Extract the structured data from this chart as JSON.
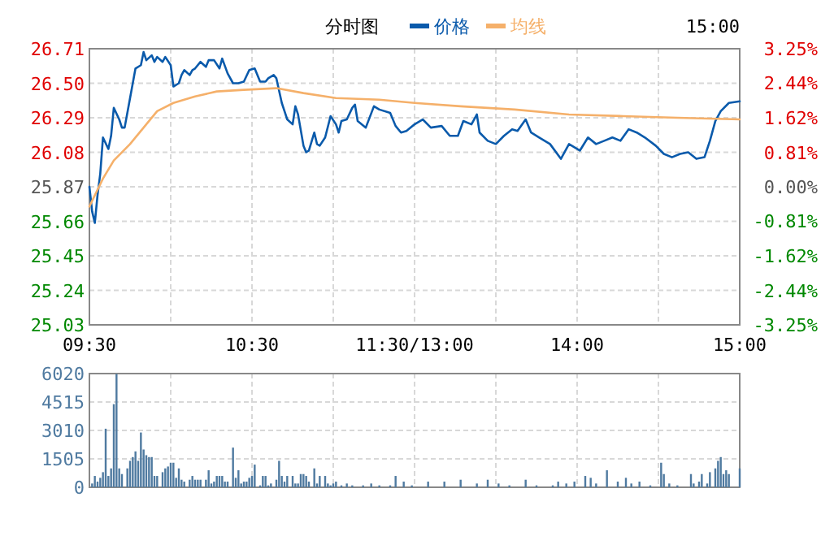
{
  "chart_data": [
    {
      "type": "line",
      "title": "分时图",
      "legend": "top",
      "grid": true,
      "annotations": [
        "15:00"
      ],
      "categories": [
        "09:30",
        null,
        null,
        null,
        null,
        null,
        null,
        null,
        null,
        null,
        null,
        null,
        null,
        null,
        null,
        null,
        null,
        null,
        null,
        null,
        null,
        null,
        null,
        null,
        null,
        null,
        null,
        null,
        null,
        null,
        null,
        null,
        null,
        null,
        null,
        null,
        null,
        null,
        null,
        null,
        null,
        null,
        null,
        null,
        null,
        null,
        null,
        null,
        null,
        null,
        null,
        null,
        null,
        null,
        null,
        null,
        null,
        null,
        null,
        null,
        "10:30",
        null,
        null,
        null,
        null,
        null,
        null,
        null,
        null,
        null,
        null,
        null,
        null,
        null,
        null,
        null,
        null,
        null,
        null,
        null,
        null,
        null,
        null,
        null,
        null,
        null,
        null,
        null,
        null,
        null,
        null,
        null,
        null,
        null,
        null,
        null,
        null,
        null,
        null,
        null,
        null,
        null,
        null,
        null,
        null,
        null,
        null,
        null,
        null,
        null,
        null,
        null,
        null,
        null,
        null,
        null,
        null,
        null,
        null,
        null,
        "11:30/13:00",
        null,
        null,
        null,
        null,
        null,
        null,
        null,
        null,
        null,
        null,
        null,
        null,
        null,
        null,
        null,
        null,
        null,
        null,
        null,
        null,
        null,
        null,
        null,
        null,
        null,
        null,
        null,
        null,
        null,
        null,
        null,
        null,
        null,
        null,
        null,
        null,
        null,
        null,
        null,
        null,
        null,
        null,
        null,
        null,
        null,
        null,
        null,
        null,
        null,
        null,
        null,
        null,
        null,
        null,
        null,
        null,
        null,
        null,
        null,
        "14:00",
        null,
        null,
        null,
        null,
        null,
        null,
        null,
        null,
        null,
        null,
        null,
        null,
        null,
        null,
        null,
        null,
        null,
        null,
        null,
        null,
        null,
        null,
        null,
        null,
        null,
        null,
        null,
        null,
        null,
        null,
        null,
        null,
        null,
        null,
        null,
        null,
        null,
        null,
        null,
        null,
        null,
        null,
        null,
        null,
        null,
        null,
        null,
        null,
        null,
        null,
        null,
        null,
        null,
        null,
        null,
        null,
        null,
        null,
        null,
        "15:00"
      ],
      "ylim": [
        25.03,
        26.71
      ],
      "yticks": [
        {
          "value": 25.03,
          "label": "25.03"
        },
        {
          "value": 25.24,
          "label": "25.24"
        },
        {
          "value": 25.45,
          "label": "25.45"
        },
        {
          "value": 25.66,
          "label": "25.66"
        },
        {
          "value": 25.87,
          "label": "25.87"
        },
        {
          "value": 26.08,
          "label": "26.08"
        },
        {
          "value": 26.29,
          "label": "26.29"
        },
        {
          "value": 26.5,
          "label": "26.50"
        },
        {
          "value": 26.71,
          "label": "26.71"
        }
      ],
      "y2lim": [
        -3.25,
        3.25
      ],
      "y2ticks": [
        {
          "value": -3.25,
          "label": "-3.25%"
        },
        {
          "value": -2.44,
          "label": "-2.44%"
        },
        {
          "value": -1.62,
          "label": "-1.62%"
        },
        {
          "value": -0.81,
          "label": "-0.81%"
        },
        {
          "value": 0,
          "label": "0.00%"
        },
        {
          "value": 0.81,
          "label": "0.81%"
        },
        {
          "value": 1.62,
          "label": "1.62%"
        },
        {
          "value": 2.44,
          "label": "2.44%"
        },
        {
          "value": 3.25,
          "label": "3.25%"
        }
      ],
      "series": [
        {
          "name": "价格",
          "color": "#0a5aab",
          "values": [
            25.87,
            25.72,
            25.65,
            25.82,
            25.95,
            26.17,
            null,
            26.1,
            26.18,
            26.35,
            null,
            26.28,
            26.23,
            26.23,
            null,
            26.41,
            26.5,
            26.59,
            null,
            26.61,
            26.69,
            26.64,
            null,
            26.67,
            26.63,
            26.66,
            null,
            26.63,
            26.66,
            null,
            26.61,
            26.48,
            null,
            26.5,
            26.55,
            26.58,
            null,
            26.55,
            26.58,
            26.59,
            null,
            26.63,
            null,
            26.6,
            26.64,
            null,
            26.64,
            null,
            26.59,
            26.65,
            null,
            26.56,
            null,
            26.5,
            null,
            26.5,
            null,
            26.51,
            null,
            26.58,
            null,
            26.59,
            null,
            26.51,
            null,
            26.51,
            26.53,
            null,
            26.55,
            26.53,
            null,
            26.38,
            26.33,
            26.28,
            null,
            26.25,
            26.36,
            26.31,
            null,
            26.12,
            26.08,
            26.09,
            null,
            26.2,
            26.13,
            26.12,
            null,
            26.17,
            null,
            26.3,
            null,
            26.25,
            26.2,
            26.27,
            null,
            26.28,
            null,
            26.35,
            26.37,
            26.27,
            null,
            null,
            26.23,
            null,
            null,
            26.36,
            null,
            26.34,
            null,
            null,
            null,
            26.32,
            null,
            26.24,
            null,
            26.2,
            null,
            26.21,
            null,
            null,
            26.25,
            null,
            null,
            26.28,
            null,
            null,
            26.23,
            null,
            null,
            null,
            26.24,
            null,
            null,
            26.18,
            null,
            null,
            26.18,
            null,
            26.27,
            null,
            null,
            26.25,
            null,
            26.31,
            26.2,
            null,
            null,
            26.15,
            null,
            null,
            26.13,
            null,
            null,
            26.18,
            null,
            null,
            26.22,
            null,
            26.21,
            null,
            null,
            26.28,
            null,
            26.2,
            null,
            null,
            26.17,
            null,
            null,
            null,
            26.13,
            null,
            null,
            null,
            26.04,
            null,
            null,
            26.13,
            null,
            null,
            null,
            26.09,
            null,
            null,
            26.17,
            null,
            null,
            26.13,
            null,
            null,
            26.15,
            null,
            null,
            26.17,
            null,
            null,
            26.15,
            null,
            null,
            26.22,
            null,
            null,
            26.2,
            null,
            null,
            26.17,
            null,
            null,
            null,
            26.12,
            null,
            null,
            26.07,
            null,
            null,
            26.05,
            null,
            null,
            26.07,
            null,
            null,
            26.08,
            null,
            null,
            26.04,
            null,
            null,
            26.05,
            null,
            26.15,
            null,
            26.27,
            null,
            26.33,
            null,
            null,
            26.38,
            null,
            null,
            null,
            26.39
          ]
        },
        {
          "name": "均线",
          "color": "#f5b06a",
          "values": [
            25.75,
            null,
            null,
            null,
            null,
            25.92,
            null,
            null,
            null,
            26.03,
            null,
            null,
            null,
            null,
            null,
            26.13,
            null,
            null,
            null,
            null,
            26.23,
            null,
            null,
            null,
            null,
            26.33,
            null,
            null,
            null,
            null,
            null,
            26.38,
            null,
            null,
            null,
            null,
            null,
            null,
            null,
            26.42,
            null,
            null,
            null,
            null,
            null,
            null,
            null,
            26.45,
            null,
            null,
            null,
            null,
            null,
            null,
            null,
            null,
            null,
            26.46,
            null,
            null,
            null,
            null,
            null,
            null,
            null,
            null,
            null,
            null,
            null,
            26.47,
            null,
            null,
            null,
            null,
            null,
            null,
            null,
            null,
            null,
            26.44,
            null,
            null,
            null,
            null,
            null,
            null,
            null,
            null,
            null,
            null,
            null,
            26.41,
            null,
            null,
            null,
            null,
            null,
            null,
            null,
            null,
            null,
            null,
            null,
            null,
            null,
            null,
            null,
            26.4,
            null,
            null,
            null,
            null,
            null,
            null,
            null,
            null,
            null,
            null,
            null,
            null,
            26.38,
            null,
            null,
            null,
            null,
            null,
            null,
            null,
            null,
            null,
            null,
            null,
            null,
            null,
            null,
            null,
            null,
            26.36,
            null,
            null,
            null,
            null,
            null,
            null,
            null,
            null,
            null,
            null,
            null,
            null,
            null,
            null,
            null,
            null,
            null,
            null,
            null,
            26.34,
            null,
            null,
            null,
            null,
            null,
            null,
            null,
            null,
            null,
            null,
            null,
            null,
            null,
            null,
            null,
            null,
            null,
            null,
            null,
            26.31,
            null,
            null,
            null,
            null,
            null,
            null,
            null,
            null,
            null,
            null,
            null,
            null,
            null,
            null,
            null,
            null,
            null,
            null,
            null,
            26.3,
            null,
            null,
            null,
            null,
            null,
            null,
            null,
            null,
            null,
            null,
            null,
            null,
            null,
            null,
            null,
            null,
            null,
            null,
            null,
            26.29,
            null,
            null,
            null,
            null,
            null,
            null,
            null,
            null,
            null,
            null,
            null,
            null,
            null,
            null,
            null,
            null,
            null,
            null,
            null,
            null,
            null,
            null,
            26.28
          ]
        }
      ]
    },
    {
      "type": "bar",
      "grid": true,
      "tick_labels": "y",
      "color": "#4f7aa0",
      "categories": [
        null,
        null,
        null,
        null,
        null,
        null,
        null,
        null,
        null,
        null,
        null,
        null,
        null,
        null,
        null,
        null,
        null,
        null,
        null,
        null,
        null,
        null,
        null,
        null,
        null,
        null,
        null,
        null,
        null,
        null,
        null,
        null,
        null,
        null,
        null,
        null,
        null,
        null,
        null,
        null,
        null,
        null,
        null,
        null,
        null,
        null,
        null,
        null,
        null,
        null,
        null,
        null,
        null,
        null,
        null,
        null,
        null,
        null,
        null,
        null,
        null,
        null,
        null,
        null,
        null,
        null,
        null,
        null,
        null,
        null,
        null,
        null,
        null,
        null,
        null,
        null,
        null,
        null,
        null,
        null,
        null,
        null,
        null,
        null,
        null,
        null,
        null,
        null,
        null,
        null,
        null,
        null,
        null,
        null,
        null,
        null,
        null,
        null,
        null,
        null,
        null,
        null,
        null,
        null,
        null,
        null,
        null,
        null,
        null,
        null,
        null,
        null,
        null,
        null,
        null,
        null,
        null,
        null,
        null,
        null,
        null,
        null,
        null,
        null,
        null,
        null,
        null,
        null,
        null,
        null,
        null,
        null,
        null,
        null,
        null,
        null,
        null,
        null,
        null,
        null,
        null,
        null,
        null,
        null,
        null,
        null,
        null,
        null,
        null,
        null,
        null,
        null,
        null,
        null,
        null,
        null,
        null,
        null,
        null,
        null,
        null,
        null,
        null,
        null,
        null,
        null,
        null,
        null,
        null,
        null,
        null,
        null,
        null,
        null,
        null,
        null,
        null,
        null,
        null,
        null,
        null,
        null,
        null,
        null,
        null,
        null,
        null,
        null,
        null,
        null,
        null,
        null,
        null,
        null,
        null,
        null,
        null,
        null,
        null,
        null,
        null,
        null,
        null,
        null,
        null,
        null,
        null,
        null,
        null,
        null,
        null,
        null,
        null,
        null,
        null,
        null,
        null,
        null,
        null,
        null,
        null,
        null,
        null,
        null,
        null,
        null,
        null,
        null,
        null,
        null,
        null,
        null,
        null,
        null,
        null,
        null,
        null,
        null,
        null,
        null,
        null
      ],
      "ylim": [
        0,
        6020
      ],
      "yticks": [
        0,
        1505,
        3010,
        4515,
        6020
      ],
      "values": [
        null,
        200,
        600,
        300,
        500,
        800,
        3100,
        600,
        1000,
        4400,
        6000,
        1000,
        700,
        null,
        1000,
        1400,
        1600,
        1900,
        1400,
        2900,
        2000,
        1700,
        1600,
        1600,
        600,
        600,
        null,
        800,
        1000,
        1100,
        1300,
        1300,
        500,
        1000,
        400,
        300,
        null,
        400,
        600,
        400,
        400,
        400,
        null,
        400,
        900,
        200,
        300,
        600,
        600,
        600,
        300,
        300,
        null,
        2100,
        500,
        900,
        200,
        300,
        300,
        500,
        600,
        1200,
        null,
        100,
        600,
        600,
        100,
        200,
        null,
        400,
        1400,
        600,
        300,
        600,
        null,
        600,
        200,
        200,
        700,
        700,
        600,
        300,
        null,
        1000,
        200,
        600,
        null,
        600,
        200,
        100,
        200,
        300,
        null,
        100,
        null,
        200,
        null,
        100,
        null,
        null,
        null,
        100,
        null,
        null,
        200,
        null,
        null,
        100,
        null,
        null,
        null,
        100,
        null,
        600,
        null,
        null,
        300,
        null,
        null,
        100,
        null,
        null,
        null,
        null,
        null,
        300,
        null,
        null,
        null,
        null,
        null,
        300,
        null,
        null,
        null,
        null,
        null,
        400,
        null,
        null,
        null,
        null,
        null,
        200,
        null,
        null,
        null,
        400,
        null,
        null,
        null,
        200,
        null,
        null,
        null,
        100,
        null,
        null,
        null,
        null,
        null,
        400,
        null,
        null,
        null,
        100,
        null,
        null,
        null,
        null,
        null,
        100,
        null,
        300,
        null,
        null,
        200,
        null,
        null,
        300,
        null,
        null,
        null,
        600,
        null,
        500,
        null,
        200,
        null,
        null,
        null,
        900,
        null,
        null,
        null,
        300,
        null,
        null,
        500,
        null,
        200,
        null,
        null,
        300,
        null,
        null,
        null,
        100,
        null,
        null,
        null,
        1300,
        700,
        null,
        200,
        null,
        null,
        100,
        null,
        null,
        null,
        null,
        700,
        200,
        null,
        300,
        700,
        null,
        200,
        800,
        null,
        1000,
        1400,
        1600,
        700,
        900,
        700,
        null,
        null,
        null,
        1000
      ]
    }
  ]
}
